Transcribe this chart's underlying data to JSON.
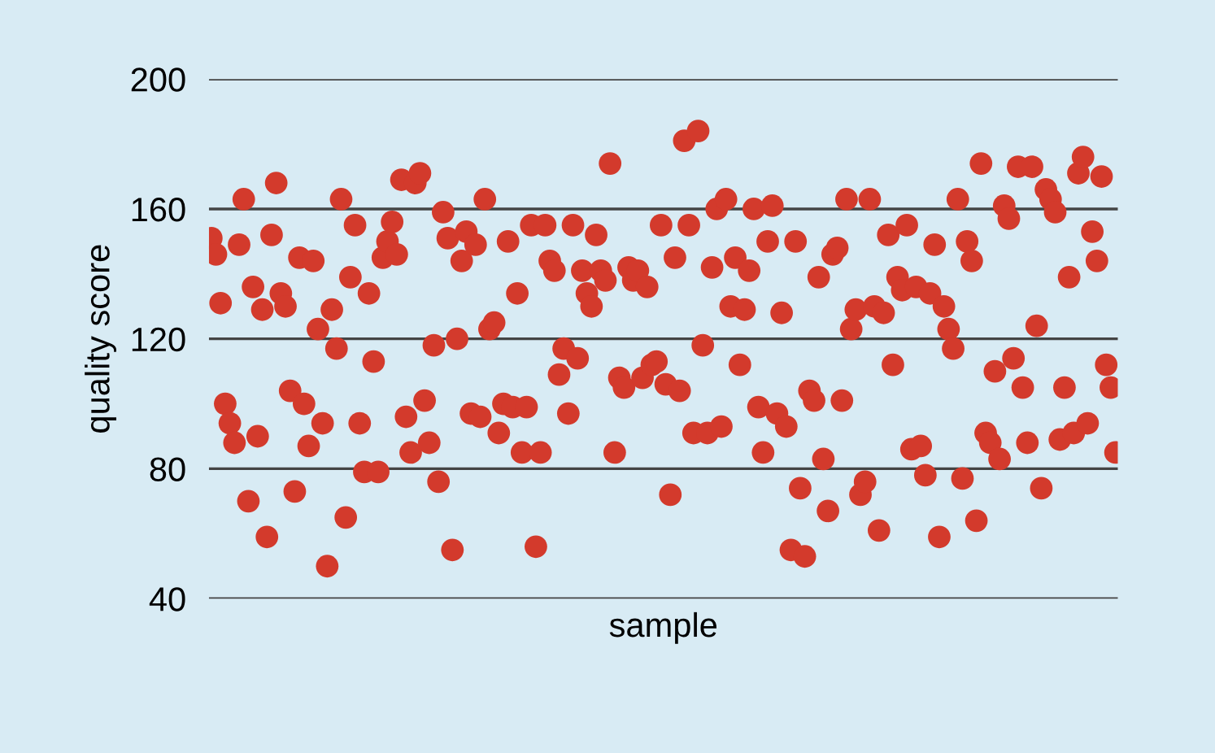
{
  "chart_data": {
    "type": "scatter",
    "xlabel": "sample",
    "ylabel": "quality score",
    "ylim": [
      40,
      200
    ],
    "yticks": [
      40,
      80,
      120,
      160,
      200
    ],
    "grid": "y",
    "tick_labels": "y",
    "marker": "circle",
    "series": [
      {
        "color": "#d33a2c",
        "values": [
          151,
          146,
          131,
          100,
          94,
          88,
          149,
          163,
          70,
          136,
          90,
          129,
          59,
          152,
          168,
          134,
          130,
          104,
          73,
          145,
          100,
          87,
          144,
          123,
          94,
          50,
          129,
          117,
          163,
          65,
          139,
          155,
          94,
          79,
          134,
          113,
          79,
          145,
          150,
          156,
          146,
          169,
          96,
          85,
          168,
          171,
          101,
          88,
          118,
          76,
          159,
          151,
          55,
          120,
          144,
          153,
          97,
          149,
          96,
          163,
          123,
          125,
          91,
          100,
          150,
          99,
          134,
          85,
          99,
          155,
          56,
          85,
          155,
          144,
          141,
          109,
          117,
          97,
          155,
          114,
          141,
          134,
          130,
          152,
          141,
          138,
          174,
          85,
          108,
          105,
          142,
          138,
          141,
          108,
          136,
          112,
          113,
          155,
          106,
          72,
          145,
          104,
          181,
          155,
          91,
          184,
          118,
          91,
          142,
          160,
          93,
          163,
          130,
          145,
          112,
          129,
          141,
          160,
          99,
          85,
          150,
          161,
          97,
          128,
          93,
          55,
          150,
          74,
          53,
          104,
          101,
          139,
          83,
          67,
          146,
          148,
          101,
          163,
          123,
          129,
          72,
          76,
          163,
          130,
          61,
          128,
          152,
          112,
          139,
          135,
          155,
          86,
          136,
          87,
          78,
          134,
          149,
          59,
          130,
          123,
          117,
          163,
          77,
          150,
          144,
          64,
          174,
          91,
          88,
          110,
          83,
          161,
          157,
          114,
          173,
          105,
          88,
          173,
          124,
          74,
          166,
          163,
          159,
          89,
          105,
          139,
          91,
          171,
          176,
          94,
          153,
          144,
          170,
          112,
          105,
          85
        ]
      }
    ]
  }
}
